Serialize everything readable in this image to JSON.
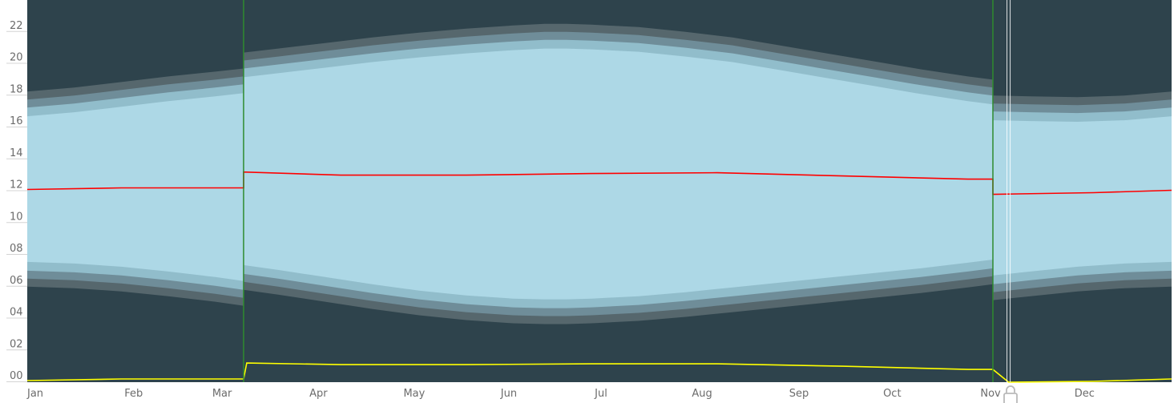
{
  "chart_data": {
    "type": "area",
    "title": "",
    "xlabel": "",
    "ylabel": "",
    "x_ticks": [
      "Jan",
      "Feb",
      "Mar",
      "Apr",
      "May",
      "Jun",
      "Jul",
      "Aug",
      "Sep",
      "Oct",
      "Nov",
      "Dec"
    ],
    "y_ticks": [
      "00",
      "02",
      "04",
      "06",
      "08",
      "10",
      "12",
      "14",
      "16",
      "18",
      "20",
      "22"
    ],
    "ylim": [
      0,
      24
    ],
    "xlim": [
      0,
      365
    ],
    "grid": false,
    "legend": "none",
    "dst_transitions_day": [
      69,
      308
    ],
    "current_day": 313,
    "colors": {
      "background": "#2e434c",
      "astronomical_twilight": "#56676d",
      "nautical_twilight": "#6f8d99",
      "civil_twilight": "#91bdcb",
      "daylight": "#add8e6",
      "solar_noon_line": "#ff0000",
      "solar_midnight_line": "#ffff00",
      "dst_line": "#2e8b2e",
      "cursor_line": "#ffffff"
    },
    "series": [
      {
        "role": "sunrise",
        "x": [
          0,
          15,
          30,
          45,
          60,
          69,
          69,
          80,
          95,
          110,
          125,
          140,
          155,
          165,
          172,
          180,
          195,
          210,
          225,
          240,
          255,
          270,
          285,
          300,
          308,
          308,
          320,
          335,
          350,
          365
        ],
        "values": [
          7.55,
          7.45,
          7.25,
          6.95,
          6.6,
          6.35,
          7.35,
          7.05,
          6.6,
          6.15,
          5.75,
          5.45,
          5.25,
          5.2,
          5.2,
          5.25,
          5.4,
          5.65,
          5.95,
          6.25,
          6.55,
          6.85,
          7.15,
          7.5,
          7.7,
          6.7,
          6.95,
          7.25,
          7.45,
          7.55
        ]
      },
      {
        "role": "sunset",
        "x": [
          0,
          15,
          30,
          45,
          60,
          69,
          69,
          80,
          95,
          110,
          125,
          140,
          155,
          165,
          172,
          180,
          195,
          210,
          225,
          240,
          255,
          270,
          285,
          300,
          308,
          308,
          320,
          335,
          350,
          365
        ],
        "values": [
          16.7,
          16.95,
          17.3,
          17.65,
          17.95,
          18.15,
          19.15,
          19.4,
          19.75,
          20.1,
          20.4,
          20.65,
          20.85,
          20.95,
          20.95,
          20.9,
          20.75,
          20.45,
          20.1,
          19.6,
          19.1,
          18.6,
          18.1,
          17.65,
          17.45,
          16.45,
          16.4,
          16.35,
          16.45,
          16.7
        ]
      },
      {
        "role": "solar_noon",
        "x": [
          0,
          30,
          60,
          69,
          69,
          100,
          140,
          180,
          220,
          260,
          300,
          308,
          308,
          340,
          365
        ],
        "values": [
          12.1,
          12.2,
          12.2,
          12.2,
          13.2,
          13.0,
          13.0,
          13.1,
          13.15,
          12.95,
          12.75,
          12.75,
          11.8,
          11.9,
          12.05
        ]
      },
      {
        "role": "solar_midnight",
        "x": [
          0,
          30,
          60,
          69,
          70,
          100,
          140,
          180,
          220,
          260,
          300,
          308,
          313,
          340,
          365
        ],
        "values": [
          0.1,
          0.2,
          0.2,
          0.2,
          1.2,
          1.1,
          1.1,
          1.15,
          1.15,
          1.0,
          0.8,
          0.8,
          0.0,
          0.05,
          0.2
        ]
      }
    ]
  }
}
